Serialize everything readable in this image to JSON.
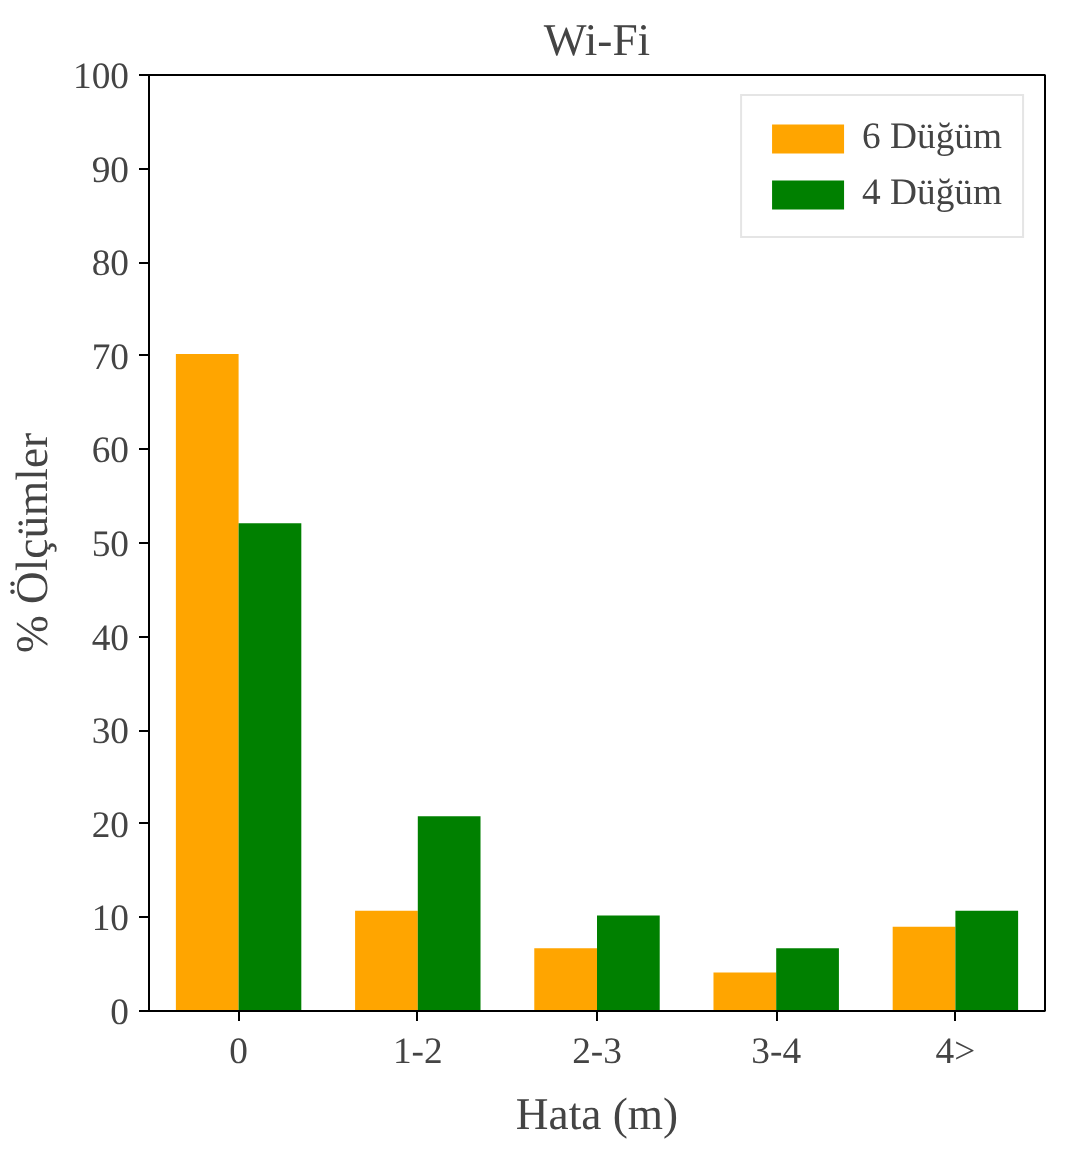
{
  "chart_data": {
    "type": "bar",
    "title": "Wi-Fi",
    "xlabel": "Hata (m)",
    "ylabel": "% Ölçümler",
    "categories": [
      "0",
      "1-2",
      "2-3",
      "3-4",
      "4>"
    ],
    "series": [
      {
        "name": "6 Düğüm",
        "color": "#ffa500",
        "values": [
          70.2,
          10.7,
          6.7,
          4.1,
          9.0
        ]
      },
      {
        "name": "4 Düğüm",
        "color": "#008000",
        "values": [
          52.1,
          20.8,
          10.2,
          6.7,
          10.7
        ]
      }
    ],
    "ylim": [
      0,
      100
    ],
    "yticks": [
      0,
      10,
      20,
      30,
      40,
      50,
      60,
      70,
      80,
      90,
      100
    ],
    "grid": false,
    "legend": "top right"
  }
}
